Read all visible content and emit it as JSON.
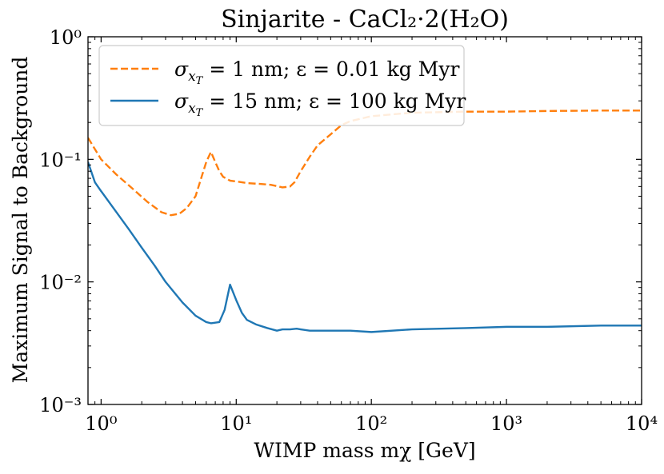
{
  "chart_data": {
    "type": "line",
    "title": "Sinjarite - CaCl₂·2(H₂O)",
    "xlabel": "WIMP mass mχ [GeV]",
    "ylabel": "Maximum Signal to Background",
    "xscale": "log",
    "yscale": "log",
    "xlim": [
      0.8,
      10000
    ],
    "ylim": [
      0.001,
      1
    ],
    "legend_position": "top-left",
    "x_ticks": [
      {
        "value": 1,
        "label": "10⁰"
      },
      {
        "value": 10,
        "label": "10¹"
      },
      {
        "value": 100,
        "label": "10²"
      },
      {
        "value": 1000,
        "label": "10³"
      },
      {
        "value": 10000,
        "label": "10⁴"
      }
    ],
    "y_ticks": [
      {
        "value": 0.001,
        "label": "10⁻³"
      },
      {
        "value": 0.01,
        "label": "10⁻²"
      },
      {
        "value": 0.1,
        "label": "10⁻¹"
      },
      {
        "value": 1,
        "label": "10⁰"
      }
    ],
    "series": [
      {
        "name": "σxT = 1 nm;  ε = 0.01 kg Myr",
        "color": "#ff7f0e",
        "style": "dashed",
        "x": [
          0.8,
          1.0,
          1.3,
          1.7,
          2.2,
          2.8,
          3.3,
          3.8,
          4.3,
          5.0,
          5.5,
          6.0,
          6.5,
          7.0,
          7.5,
          8.0,
          9.0,
          10,
          12,
          15,
          18,
          22,
          25,
          27,
          30,
          35,
          40,
          50,
          60,
          70,
          100,
          200,
          500,
          1000,
          2000,
          5000,
          10000
        ],
        "y": [
          0.15,
          0.1,
          0.075,
          0.058,
          0.045,
          0.037,
          0.035,
          0.036,
          0.04,
          0.05,
          0.07,
          0.095,
          0.115,
          0.095,
          0.08,
          0.072,
          0.067,
          0.066,
          0.064,
          0.063,
          0.062,
          0.059,
          0.06,
          0.065,
          0.08,
          0.105,
          0.13,
          0.16,
          0.19,
          0.205,
          0.225,
          0.24,
          0.245,
          0.245,
          0.248,
          0.25,
          0.25
        ]
      },
      {
        "name": "σxT = 15 nm;  ε = 100 kg Myr",
        "color": "#1f77b4",
        "style": "solid",
        "x": [
          0.8,
          0.9,
          1.0,
          1.3,
          1.6,
          2.0,
          2.5,
          3.0,
          4.0,
          5.0,
          6.0,
          6.5,
          7.5,
          8.2,
          9.0,
          10,
          11,
          12,
          14,
          17,
          20,
          22,
          25,
          28,
          30,
          35,
          50,
          70,
          100,
          200,
          500,
          1000,
          2000,
          5000,
          10000
        ],
        "y": [
          0.095,
          0.065,
          0.055,
          0.037,
          0.027,
          0.019,
          0.0135,
          0.01,
          0.0068,
          0.0053,
          0.0047,
          0.0046,
          0.0047,
          0.0059,
          0.0095,
          0.0071,
          0.0056,
          0.0049,
          0.0045,
          0.0042,
          0.004,
          0.0041,
          0.0041,
          0.00415,
          0.0041,
          0.004,
          0.004,
          0.004,
          0.0039,
          0.0041,
          0.0042,
          0.0043,
          0.0043,
          0.0044,
          0.0044
        ]
      }
    ],
    "legend": [
      {
        "symbol": "σ",
        "sub": "x",
        "subsub": "T",
        "text": " = 1 nm;  ε = 0.01 kg Myr"
      },
      {
        "symbol": "σ",
        "sub": "x",
        "subsub": "T",
        "text": " = 15 nm;  ε = 100 kg Myr"
      }
    ]
  }
}
